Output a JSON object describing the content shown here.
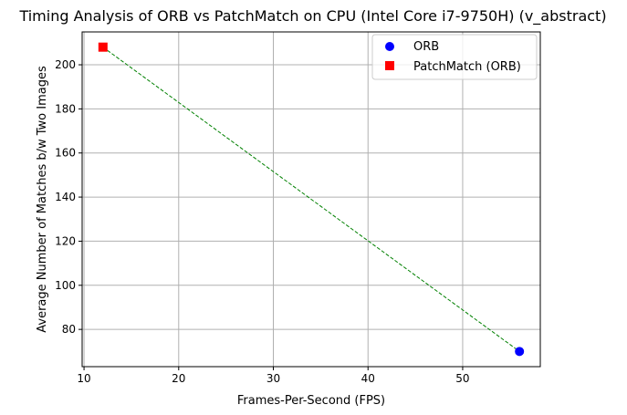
{
  "chart_data": {
    "type": "scatter",
    "title": "Timing Analysis of ORB vs PatchMatch on CPU (Intel Core i7-9750H) (v_abstract)",
    "xlabel": "Frames-Per-Second (FPS)",
    "ylabel": "Average Number of Matches b/w Two Images",
    "xlim": [
      9.8,
      58.2
    ],
    "ylim": [
      63.1,
      214.9
    ],
    "xticks": [
      10,
      20,
      30,
      40,
      50
    ],
    "yticks": [
      80,
      100,
      120,
      140,
      160,
      180,
      200
    ],
    "grid": true,
    "legend_position": "upper right",
    "series": [
      {
        "name": "ORB",
        "marker": "circle",
        "color": "#0000ff",
        "points": [
          {
            "x": 56,
            "y": 70
          }
        ]
      },
      {
        "name": "PatchMatch (ORB)",
        "marker": "square",
        "color": "#ff0000",
        "points": [
          {
            "x": 12,
            "y": 208
          }
        ]
      }
    ],
    "connector": {
      "style": "dashed",
      "color": "#008000",
      "points": [
        {
          "x": 12,
          "y": 208
        },
        {
          "x": 56,
          "y": 70
        }
      ]
    }
  }
}
